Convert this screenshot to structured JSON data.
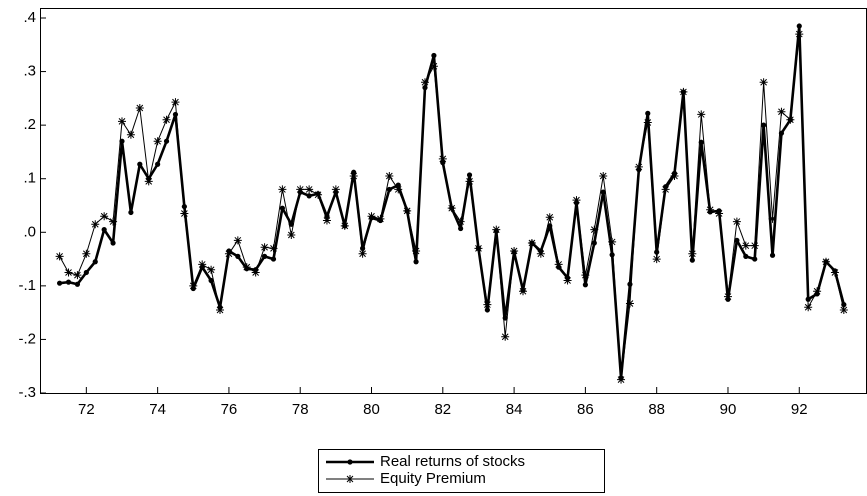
{
  "chart_data": {
    "type": "line",
    "x": [
      71.25,
      71.5,
      71.75,
      72,
      72.25,
      72.5,
      72.75,
      73,
      73.25,
      73.5,
      73.75,
      74,
      74.25,
      74.5,
      74.75,
      75,
      75.25,
      75.5,
      75.75,
      76,
      76.25,
      76.5,
      76.75,
      77,
      77.25,
      77.5,
      77.75,
      78,
      78.25,
      78.5,
      78.75,
      79,
      79.25,
      79.5,
      79.75,
      80,
      80.25,
      80.5,
      80.75,
      81,
      81.25,
      81.5,
      81.75,
      82,
      82.25,
      82.5,
      82.75,
      83,
      83.25,
      83.5,
      83.75,
      84,
      84.25,
      84.5,
      84.75,
      85,
      85.25,
      85.5,
      85.75,
      86,
      86.25,
      86.5,
      86.75,
      87,
      87.25,
      87.5,
      87.75,
      88,
      88.25,
      88.5,
      88.75,
      89,
      89.25,
      89.5,
      89.75,
      90,
      90.25,
      90.5,
      90.75,
      91,
      91.25,
      91.5,
      91.75,
      92,
      92.25,
      92.5,
      92.75,
      93,
      93.25
    ],
    "series": [
      {
        "name": "Real returns of stocks",
        "color": "#000000",
        "values": [
          -0.095,
          -0.093,
          -0.097,
          -0.075,
          -0.055,
          0.005,
          -0.02,
          0.17,
          0.037,
          0.127,
          0.1,
          0.127,
          0.17,
          0.22,
          0.048,
          -0.105,
          -0.065,
          -0.09,
          -0.14,
          -0.035,
          -0.045,
          -0.068,
          -0.07,
          -0.045,
          -0.05,
          0.045,
          0.015,
          0.075,
          0.068,
          0.072,
          0.03,
          0.075,
          0.012,
          0.112,
          -0.03,
          0.027,
          0.022,
          0.08,
          0.088,
          0.04,
          -0.055,
          0.27,
          0.33,
          0.13,
          0.045,
          0.007,
          0.107,
          -0.03,
          -0.145,
          0.002,
          -0.16,
          -0.037,
          -0.108,
          -0.02,
          -0.035,
          0.012,
          -0.065,
          -0.085,
          0.055,
          -0.098,
          -0.02,
          0.075,
          -0.042,
          -0.272,
          -0.097,
          0.117,
          0.222,
          -0.037,
          0.085,
          0.11,
          0.262,
          -0.052,
          0.168,
          0.038,
          0.04,
          -0.125,
          -0.015,
          -0.045,
          -0.05,
          0.2,
          -0.043,
          0.185,
          0.21,
          0.385,
          -0.125,
          -0.115,
          -0.055,
          -0.072,
          -0.135
        ]
      },
      {
        "name": "Equity Premium",
        "color": "#000000",
        "values": [
          -0.045,
          -0.075,
          -0.08,
          -0.04,
          0.015,
          0.03,
          0.02,
          0.207,
          0.182,
          0.232,
          0.095,
          0.17,
          0.21,
          0.243,
          0.035,
          -0.1,
          -0.06,
          -0.07,
          -0.145,
          -0.04,
          -0.015,
          -0.065,
          -0.075,
          -0.028,
          -0.03,
          0.08,
          -0.005,
          0.08,
          0.08,
          0.07,
          0.022,
          0.08,
          0.012,
          0.105,
          -0.04,
          0.03,
          0.025,
          0.105,
          0.08,
          0.04,
          -0.035,
          0.28,
          0.31,
          0.137,
          0.045,
          0.02,
          0.095,
          -0.03,
          -0.135,
          0.005,
          -0.195,
          -0.035,
          -0.11,
          -0.02,
          -0.04,
          0.028,
          -0.06,
          -0.09,
          0.06,
          -0.08,
          0.005,
          0.105,
          -0.018,
          -0.275,
          -0.133,
          0.122,
          0.205,
          -0.05,
          0.08,
          0.105,
          0.262,
          -0.04,
          0.22,
          0.042,
          0.035,
          -0.12,
          0.02,
          -0.025,
          -0.025,
          0.28,
          0.025,
          0.225,
          0.21,
          0.37,
          -0.14,
          -0.11,
          -0.055,
          -0.075,
          -0.145
        ]
      }
    ],
    "xlim": [
      70.7,
      93.9
    ],
    "xticks": [
      72,
      74,
      76,
      78,
      80,
      82,
      84,
      86,
      88,
      90,
      92
    ],
    "ylim": [
      -0.3,
      0.4
    ],
    "yticks": [
      {
        "value": 0.4,
        "label": ".4"
      },
      {
        "value": 0.3,
        "label": ".3"
      },
      {
        "value": 0.2,
        "label": ".2"
      },
      {
        "value": 0.1,
        "label": ".1"
      },
      {
        "value": 0,
        "label": ".0"
      },
      {
        "value": -0.1,
        "label": "-.1"
      },
      {
        "value": -0.2,
        "label": "-.2"
      },
      {
        "value": -0.3,
        "label": "-.3"
      }
    ],
    "grid": false,
    "legend": "bottom"
  }
}
